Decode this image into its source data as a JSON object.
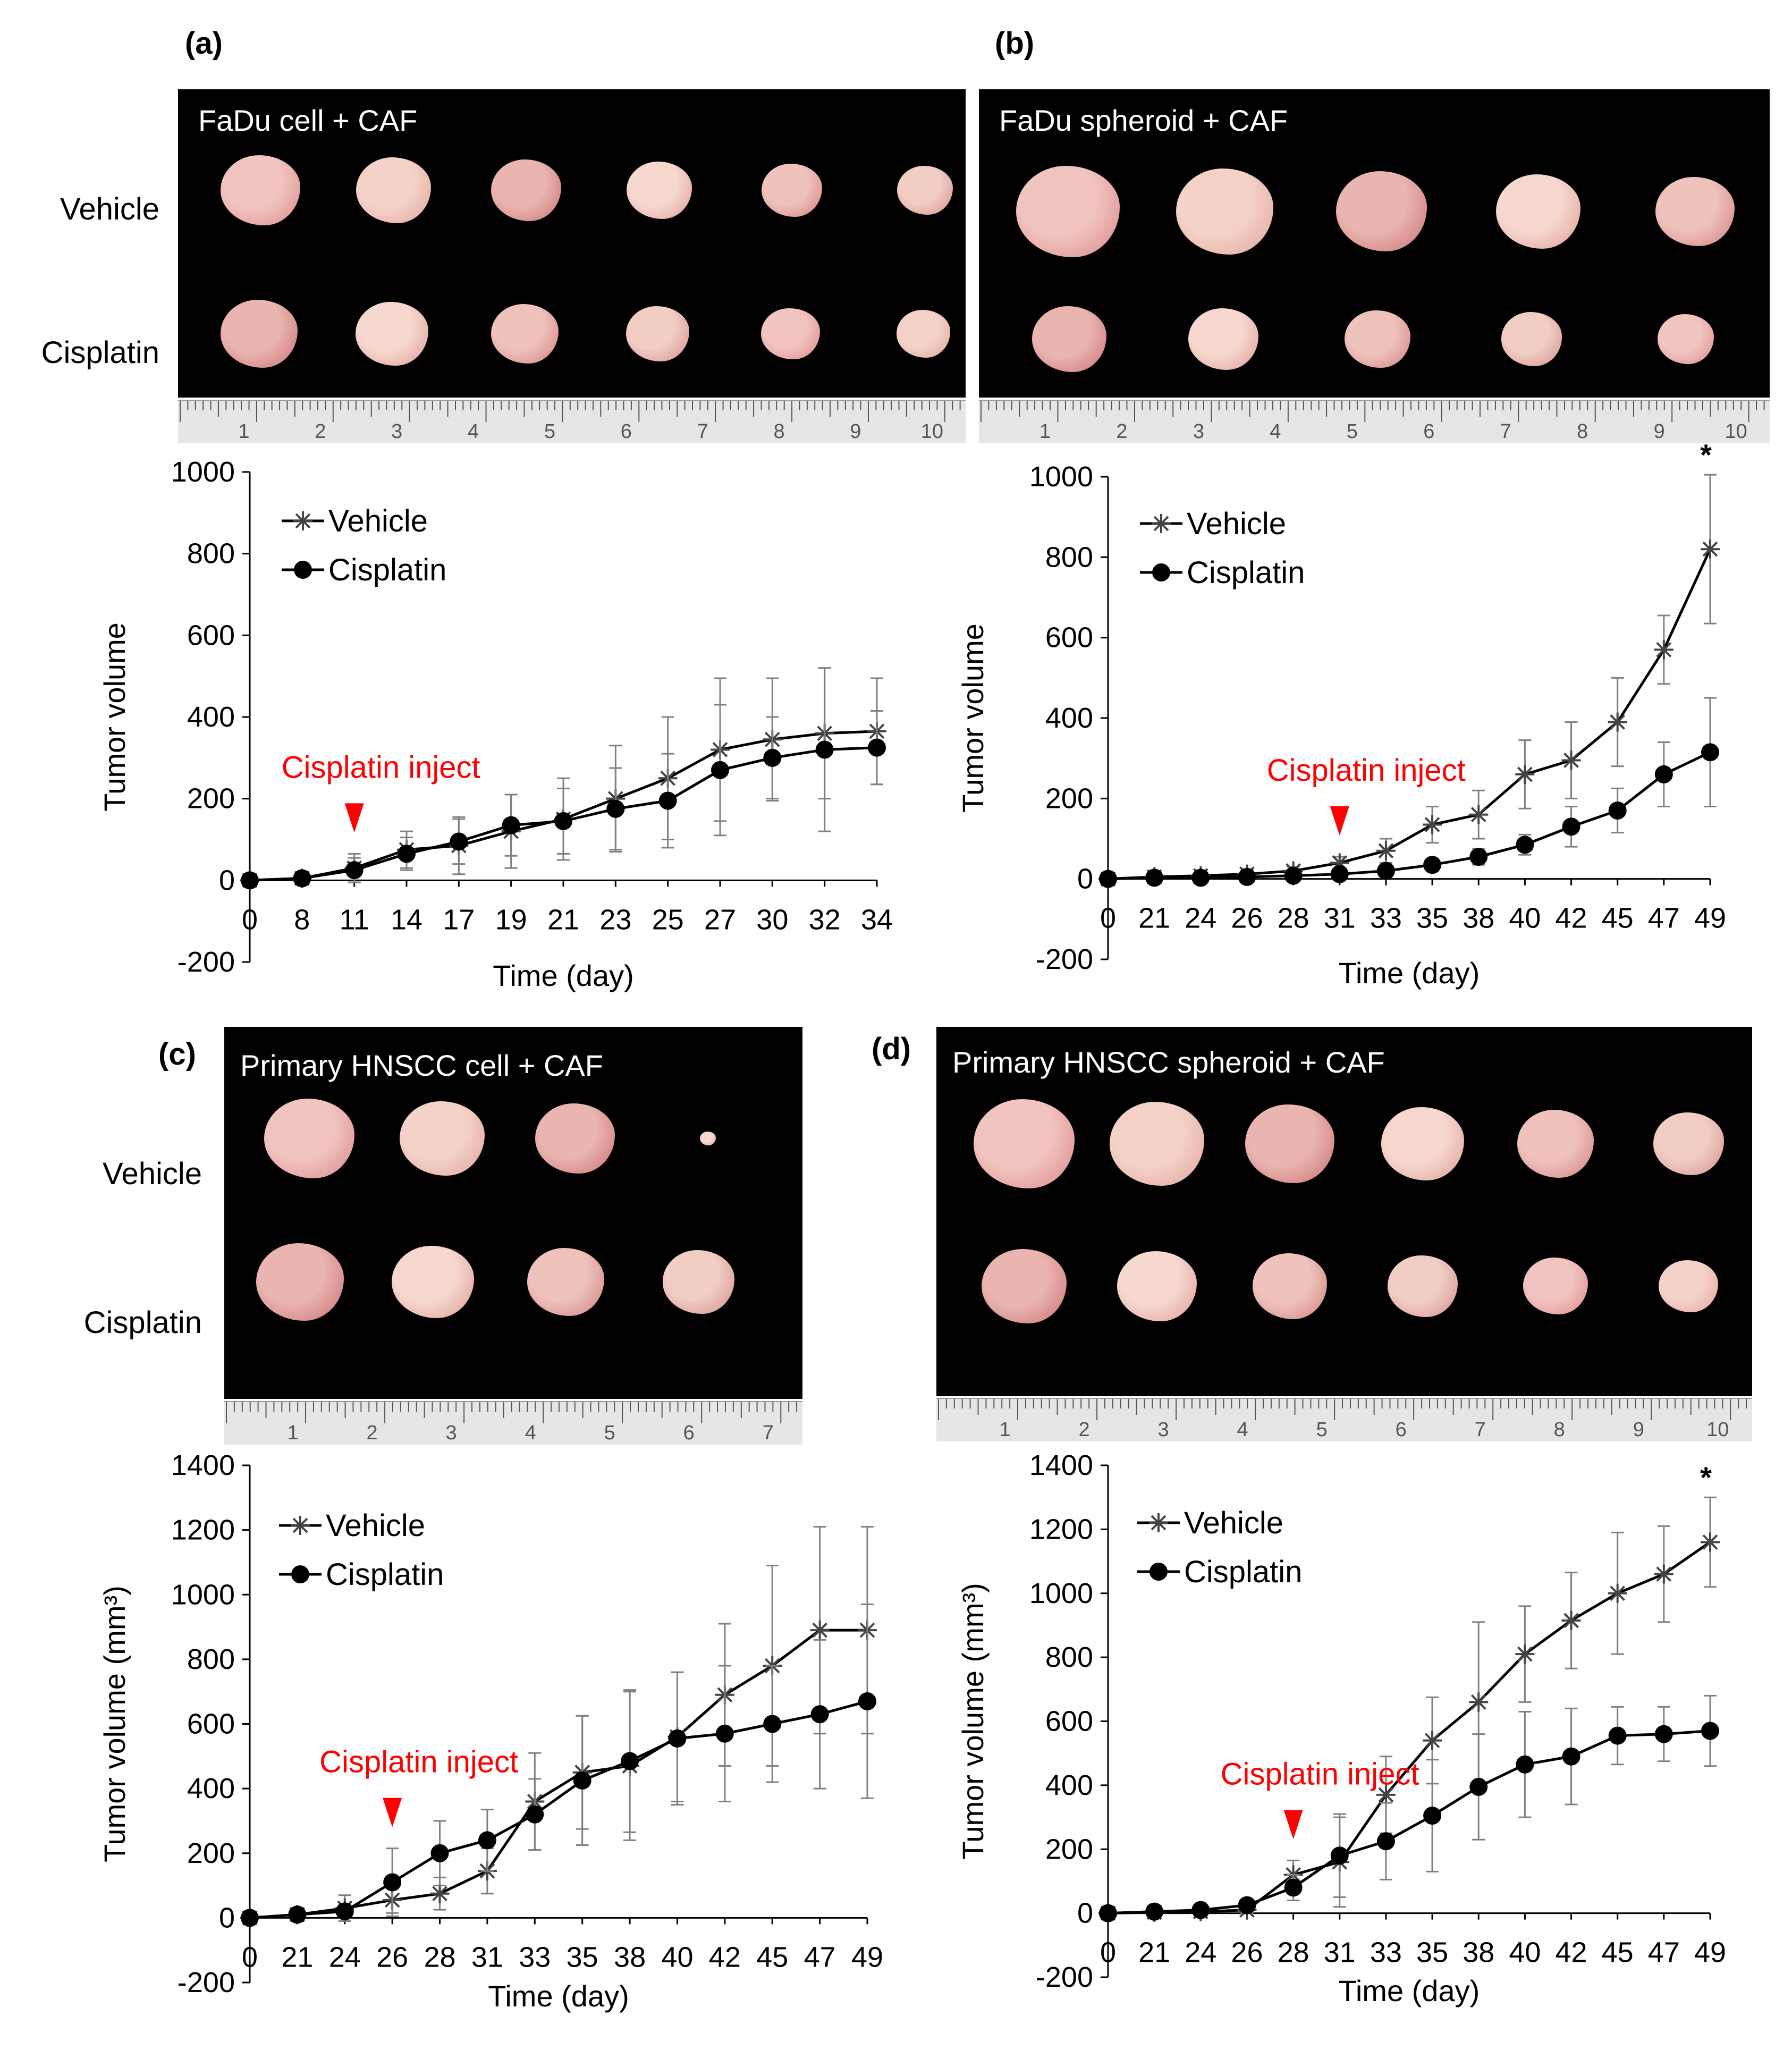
{
  "panels": [
    {
      "letter": "(a)",
      "photo_title": "FaDu cell + CAF",
      "row_labels": [
        "Vehicle",
        "Cisplatin"
      ],
      "vehicle_tumor_count": 6,
      "cisplatin_tumor_count": 6,
      "ruler_numbers": [
        "1",
        "2",
        "3",
        "4",
        "5",
        "6",
        "7",
        "8",
        "9",
        "10"
      ]
    },
    {
      "letter": "(b)",
      "photo_title": "FaDu spheroid + CAF",
      "row_labels": [],
      "vehicle_tumor_count": 5,
      "cisplatin_tumor_count": 5,
      "ruler_numbers": [
        "1",
        "2",
        "3",
        "4",
        "5",
        "6",
        "7",
        "8",
        "9",
        "10"
      ]
    },
    {
      "letter": "(c)",
      "photo_title": "Primary HNSCC  cell + CAF",
      "row_labels": [
        "Vehicle",
        "Cisplatin"
      ],
      "vehicle_tumor_count": 4,
      "cisplatin_tumor_count": 4,
      "ruler_numbers": [
        "1",
        "2",
        "3",
        "4",
        "5",
        "6",
        "7"
      ]
    },
    {
      "letter": "(d)",
      "photo_title": "Primary HNSCC  spheroid + CAF",
      "row_labels": [],
      "vehicle_tumor_count": 6,
      "cisplatin_tumor_count": 6,
      "ruler_numbers": [
        "1",
        "2",
        "3",
        "4",
        "5",
        "6",
        "7",
        "8",
        "9",
        "10"
      ]
    }
  ],
  "colors": {
    "annotation": "#ff0000",
    "line": "#000000",
    "errorbar": "#808080",
    "photo_bg": "#000000"
  },
  "chart_data": [
    {
      "type": "line",
      "xlabel": "Time  (day)",
      "ylabel": "Tumor  volume",
      "ylim": [
        -200,
        1000
      ],
      "yticks": [
        -200,
        0,
        200,
        400,
        600,
        800,
        1000
      ],
      "categories": [
        "0",
        "8",
        "11",
        "14",
        "17",
        "19",
        "21",
        "23",
        "25",
        "27",
        "30",
        "32",
        "34"
      ],
      "annotation": "Cisplatin inject",
      "inject_index": 2,
      "significance": "",
      "series": [
        {
          "name": "Vehicle",
          "marker": "star",
          "values": [
            0,
            5,
            30,
            75,
            85,
            120,
            150,
            200,
            250,
            320,
            345,
            360,
            365
          ],
          "errors": [
            0,
            5,
            35,
            45,
            70,
            90,
            100,
            130,
            150,
            175,
            150,
            160,
            130
          ]
        },
        {
          "name": "Cisplatin",
          "marker": "circle",
          "values": [
            0,
            5,
            25,
            65,
            95,
            135,
            145,
            175,
            195,
            270,
            300,
            320,
            325
          ],
          "errors": [
            0,
            5,
            30,
            40,
            55,
            75,
            80,
            100,
            115,
            160,
            100,
            200,
            90
          ]
        }
      ]
    },
    {
      "type": "line",
      "xlabel": "Time  (day)",
      "ylabel": "Tumor  volume",
      "ylim": [
        -200,
        1000
      ],
      "yticks": [
        -200,
        0,
        200,
        400,
        600,
        800,
        1000
      ],
      "categories": [
        "0",
        "21",
        "24",
        "26",
        "28",
        "31",
        "33",
        "35",
        "38",
        "40",
        "42",
        "45",
        "47",
        "49"
      ],
      "annotation": "Cisplatin inject",
      "inject_index": 5,
      "significance": "*",
      "series": [
        {
          "name": "Vehicle",
          "marker": "star",
          "values": [
            0,
            5,
            8,
            12,
            20,
            40,
            70,
            135,
            160,
            260,
            295,
            390,
            570,
            820
          ],
          "errors": [
            0,
            5,
            5,
            8,
            10,
            15,
            30,
            45,
            60,
            85,
            95,
            110,
            85,
            185
          ]
        },
        {
          "name": "Cisplatin",
          "marker": "circle",
          "values": [
            0,
            3,
            3,
            5,
            8,
            12,
            20,
            35,
            55,
            85,
            130,
            170,
            260,
            315
          ],
          "errors": [
            0,
            3,
            3,
            5,
            5,
            8,
            10,
            15,
            20,
            25,
            50,
            55,
            80,
            135
          ]
        }
      ]
    },
    {
      "type": "line",
      "xlabel": "Time  (day)",
      "ylabel": "Tumor  volume (mm³)",
      "ylim": [
        -200,
        1400
      ],
      "yticks": [
        -200,
        0,
        200,
        400,
        600,
        800,
        1000,
        1200,
        1400
      ],
      "categories": [
        "0",
        "21",
        "24",
        "26",
        "28",
        "31",
        "33",
        "35",
        "38",
        "40",
        "42",
        "45",
        "47",
        "49"
      ],
      "annotation": "Cisplatin inject",
      "inject_index": 3,
      "significance": "",
      "series": [
        {
          "name": "Vehicle",
          "marker": "star",
          "values": [
            0,
            10,
            30,
            55,
            75,
            145,
            360,
            450,
            470,
            560,
            690,
            780,
            890,
            890
          ],
          "errors": [
            0,
            15,
            40,
            40,
            50,
            70,
            150,
            175,
            230,
            200,
            220,
            310,
            320,
            320
          ]
        },
        {
          "name": "Cisplatin",
          "marker": "circle",
          "values": [
            0,
            10,
            20,
            110,
            200,
            240,
            320,
            425,
            485,
            555,
            570,
            600,
            630,
            670
          ],
          "errors": [
            0,
            10,
            20,
            105,
            100,
            95,
            110,
            200,
            220,
            205,
            210,
            180,
            230,
            300
          ]
        }
      ]
    },
    {
      "type": "line",
      "xlabel": "Time  (day)",
      "ylabel": "Tumor  volume (mm³)",
      "ylim": [
        -200,
        1400
      ],
      "yticks": [
        -200,
        0,
        200,
        400,
        600,
        800,
        1000,
        1200,
        1400
      ],
      "categories": [
        "0",
        "21",
        "24",
        "26",
        "28",
        "31",
        "33",
        "35",
        "38",
        "40",
        "42",
        "45",
        "47",
        "49"
      ],
      "annotation": "Cisplatin inject",
      "inject_index": 4,
      "significance": "*",
      "series": [
        {
          "name": "Vehicle",
          "marker": "star",
          "values": [
            0,
            3,
            5,
            10,
            120,
            160,
            370,
            540,
            660,
            810,
            915,
            1000,
            1060,
            1160
          ],
          "errors": [
            0,
            3,
            5,
            10,
            45,
            140,
            120,
            135,
            250,
            150,
            150,
            190,
            150,
            140
          ]
        },
        {
          "name": "Cisplatin",
          "marker": "circle",
          "values": [
            0,
            5,
            10,
            25,
            80,
            180,
            225,
            305,
            395,
            465,
            490,
            555,
            560,
            570
          ],
          "errors": [
            0,
            5,
            10,
            15,
            40,
            130,
            120,
            175,
            165,
            165,
            150,
            90,
            85,
            110
          ]
        }
      ]
    }
  ]
}
